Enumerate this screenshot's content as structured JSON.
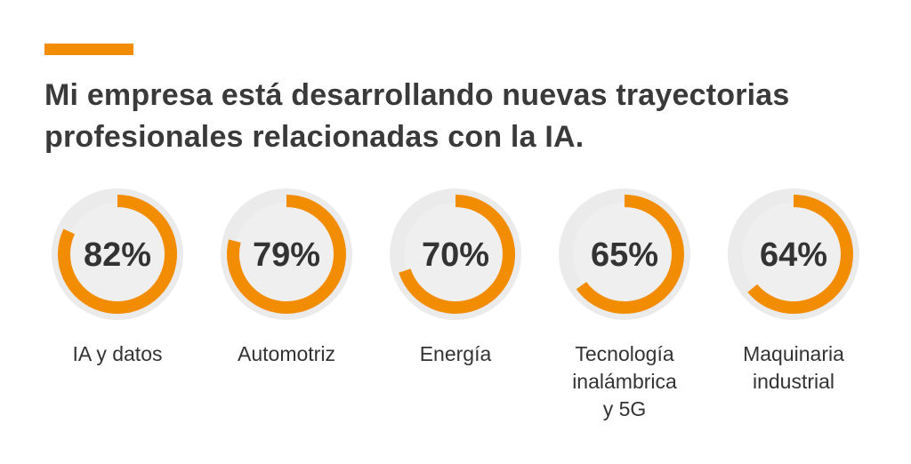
{
  "title_lines": [
    "Mi empresa está desarrollando nuevas trayectorias",
    "profesionales relacionadas con la IA."
  ],
  "colors": {
    "accent": "#F28C00",
    "track": "#EBEBEB",
    "inner": "#EFEFEF",
    "text": "#333333"
  },
  "chart_data": {
    "type": "pie",
    "variant": "donut",
    "categories": [
      "IA y datos",
      "Automotriz",
      "Energía",
      "Tecnología inalámbrica y 5G",
      "Maquinaria industrial"
    ],
    "category_lines": [
      [
        "IA y datos"
      ],
      [
        "Automotriz"
      ],
      [
        "Energía"
      ],
      [
        "Tecnología",
        "inalámbrica",
        "y 5G"
      ],
      [
        "Maquinaria",
        "industrial"
      ]
    ],
    "values": [
      82,
      79,
      70,
      65,
      64
    ],
    "value_labels": [
      "82%",
      "79%",
      "70%",
      "65%",
      "64%"
    ],
    "max": 100,
    "unit": "%"
  }
}
